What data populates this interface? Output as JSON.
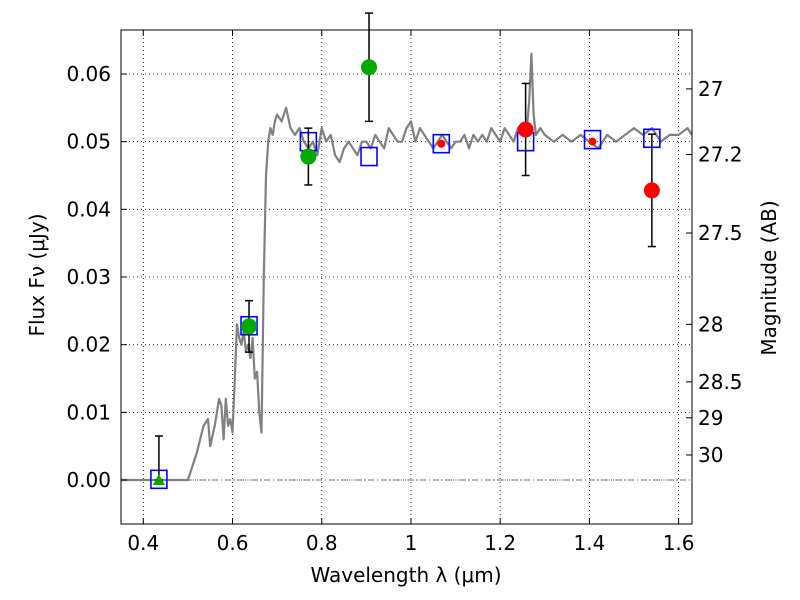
{
  "chart_data": {
    "type": "scatter",
    "xlabel": "Wavelength λ (μm)",
    "ylabel": "Flux Fν (μJy)",
    "ylabel_right": "Magnitude (AB)",
    "xlim": [
      0.35,
      1.63
    ],
    "ylim": [
      -0.0065,
      0.0665
    ],
    "grid": true,
    "x_ticks": [
      0.4,
      0.6,
      0.8,
      1.0,
      1.2,
      1.4,
      1.6
    ],
    "x_tick_labels": [
      "0.4",
      "0.6",
      "0.8",
      "1",
      "1.2",
      "1.4",
      "1.6"
    ],
    "y_ticks": [
      0.0,
      0.01,
      0.02,
      0.03,
      0.04,
      0.05,
      0.06
    ],
    "y_tick_labels": [
      "0.00",
      "0.01",
      "0.02",
      "0.03",
      "0.04",
      "0.05",
      "0.06"
    ],
    "right_ticks": [
      {
        "label": "27",
        "flux": 0.0578
      },
      {
        "label": "27.2",
        "flux": 0.0481
      },
      {
        "label": "27.5",
        "flux": 0.0365
      },
      {
        "label": "28",
        "flux": 0.023
      },
      {
        "label": "28.5",
        "flux": 0.0145
      },
      {
        "label": "29",
        "flux": 0.0092
      },
      {
        "label": "30",
        "flux": 0.0037
      }
    ],
    "colors": {
      "model": "#808080",
      "model_photometry": "#0000ff",
      "hst": "#00aa00",
      "ground": "#ff0000",
      "errorbar": "#000000"
    },
    "model_spectrum": {
      "x": [
        0.35,
        0.5,
        0.52,
        0.535,
        0.545,
        0.55,
        0.56,
        0.57,
        0.575,
        0.58,
        0.585,
        0.59,
        0.595,
        0.6,
        0.605,
        0.61,
        0.615,
        0.62,
        0.625,
        0.63,
        0.635,
        0.64,
        0.645,
        0.65,
        0.655,
        0.66,
        0.665,
        0.67,
        0.675,
        0.68,
        0.685,
        0.69,
        0.695,
        0.7,
        0.71,
        0.72,
        0.73,
        0.74,
        0.75,
        0.76,
        0.77,
        0.78,
        0.79,
        0.8,
        0.81,
        0.82,
        0.83,
        0.84,
        0.85,
        0.86,
        0.87,
        0.88,
        0.89,
        0.9,
        0.91,
        0.92,
        0.93,
        0.94,
        0.95,
        0.96,
        0.97,
        0.98,
        0.99,
        1.0,
        1.01,
        1.02,
        1.03,
        1.04,
        1.05,
        1.06,
        1.07,
        1.08,
        1.09,
        1.1,
        1.11,
        1.12,
        1.13,
        1.14,
        1.15,
        1.16,
        1.17,
        1.18,
        1.19,
        1.2,
        1.21,
        1.22,
        1.23,
        1.24,
        1.25,
        1.26,
        1.265,
        1.27,
        1.275,
        1.28,
        1.29,
        1.3,
        1.32,
        1.34,
        1.36,
        1.38,
        1.4,
        1.42,
        1.44,
        1.46,
        1.48,
        1.5,
        1.52,
        1.54,
        1.56,
        1.58,
        1.6,
        1.62,
        1.63
      ],
      "y": [
        0.0,
        0.0,
        0.004,
        0.008,
        0.009,
        0.005,
        0.008,
        0.012,
        0.011,
        0.006,
        0.012,
        0.008,
        0.009,
        0.007,
        0.015,
        0.023,
        0.021,
        0.02,
        0.022,
        0.019,
        0.02,
        0.018,
        0.021,
        0.015,
        0.016,
        0.01,
        0.007,
        0.03,
        0.045,
        0.05,
        0.052,
        0.051,
        0.053,
        0.054,
        0.053,
        0.055,
        0.052,
        0.051,
        0.052,
        0.05,
        0.049,
        0.05,
        0.048,
        0.052,
        0.05,
        0.051,
        0.048,
        0.047,
        0.049,
        0.05,
        0.049,
        0.048,
        0.05,
        0.05,
        0.049,
        0.051,
        0.05,
        0.049,
        0.052,
        0.051,
        0.05,
        0.05,
        0.052,
        0.053,
        0.05,
        0.052,
        0.051,
        0.05,
        0.049,
        0.05,
        0.051,
        0.05,
        0.049,
        0.05,
        0.05,
        0.051,
        0.049,
        0.051,
        0.05,
        0.051,
        0.05,
        0.052,
        0.051,
        0.05,
        0.052,
        0.051,
        0.05,
        0.052,
        0.051,
        0.052,
        0.056,
        0.063,
        0.054,
        0.051,
        0.052,
        0.051,
        0.05,
        0.051,
        0.05,
        0.051,
        0.05,
        0.049,
        0.051,
        0.05,
        0.051,
        0.052,
        0.051,
        0.052,
        0.05,
        0.051,
        0.051,
        0.052,
        0.051
      ]
    },
    "model_photometry": {
      "x": [
        0.435,
        0.637,
        0.77,
        0.906,
        1.068,
        1.257,
        1.407,
        1.54
      ],
      "y": [
        0.0001,
        0.0228,
        0.05,
        0.0478,
        0.0497,
        0.05,
        0.0503,
        0.0505
      ]
    },
    "hst_points": [
      {
        "x": 0.637,
        "y": 0.0227,
        "err": 0.0038
      },
      {
        "x": 0.77,
        "y": 0.0478,
        "err": 0.0042
      },
      {
        "x": 0.906,
        "y": 0.061,
        "err": 0.008
      }
    ],
    "hst_upper_limit": {
      "x": 0.435,
      "y": 0.0,
      "err_hi": 0.0065
    },
    "ground_points": [
      {
        "x": 1.068,
        "y": 0.0497,
        "err": 0.0
      },
      {
        "x": 1.257,
        "y": 0.0518,
        "err": 0.0068
      },
      {
        "x": 1.407,
        "y": 0.05,
        "err": 0.0
      },
      {
        "x": 1.54,
        "y": 0.0428,
        "err": 0.0083
      }
    ]
  }
}
